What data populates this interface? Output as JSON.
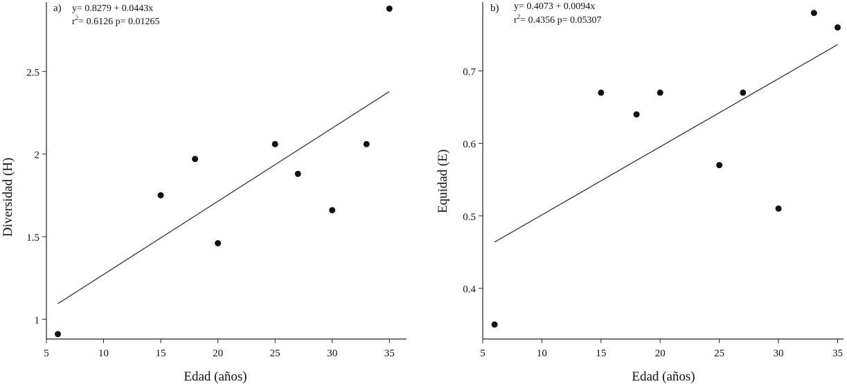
{
  "chart_data": [
    {
      "type": "scatter",
      "panel_label": "a)",
      "equation": "y= 0.8279 + 0.0443x",
      "stats_r": "r",
      "stats_sup": "2",
      "stats_rest": "= 0.6126  p= 0.01265",
      "xlabel": "Edad (años)",
      "ylabel": "Diversidad (H)",
      "xlim": [
        5,
        36.5
      ],
      "ylim": [
        0.88,
        2.92
      ],
      "xticks": [
        5,
        10,
        15,
        20,
        25,
        30,
        35
      ],
      "yticks": [
        1,
        1.5,
        2,
        2.5
      ],
      "ytick_labels": [
        "1",
        "1.5",
        "2",
        "2.5"
      ],
      "x": [
        6,
        15,
        18,
        20,
        25,
        27,
        30,
        33,
        35
      ],
      "y": [
        0.91,
        1.75,
        1.97,
        1.46,
        2.06,
        1.88,
        1.66,
        2.06,
        2.88
      ],
      "fit": {
        "intercept": 0.8279,
        "slope": 0.0443,
        "x_range": [
          6,
          35
        ]
      }
    },
    {
      "type": "scatter",
      "panel_label": "b)",
      "equation": "y= 0.4073 + 0.0094x",
      "stats_r": "r",
      "stats_sup": "2",
      "stats_rest": "= 0.4356  p= 0.05307",
      "xlabel": "Edad (años)",
      "ylabel": "Equidad (E)",
      "xlim": [
        5,
        35.5
      ],
      "ylim": [
        0.33,
        0.795
      ],
      "xticks": [
        5,
        10,
        15,
        20,
        25,
        30,
        35
      ],
      "yticks": [
        0.4,
        0.5,
        0.6,
        0.7
      ],
      "ytick_labels": [
        "0.4",
        "0.5",
        "0.6",
        "0.7"
      ],
      "x": [
        6,
        15,
        18,
        20,
        25,
        27,
        30,
        33,
        35
      ],
      "y": [
        0.35,
        0.67,
        0.64,
        0.67,
        0.57,
        0.67,
        0.51,
        0.78,
        0.76
      ],
      "fit": {
        "intercept": 0.4073,
        "slope": 0.0094,
        "x_range": [
          6,
          35
        ]
      }
    }
  ]
}
